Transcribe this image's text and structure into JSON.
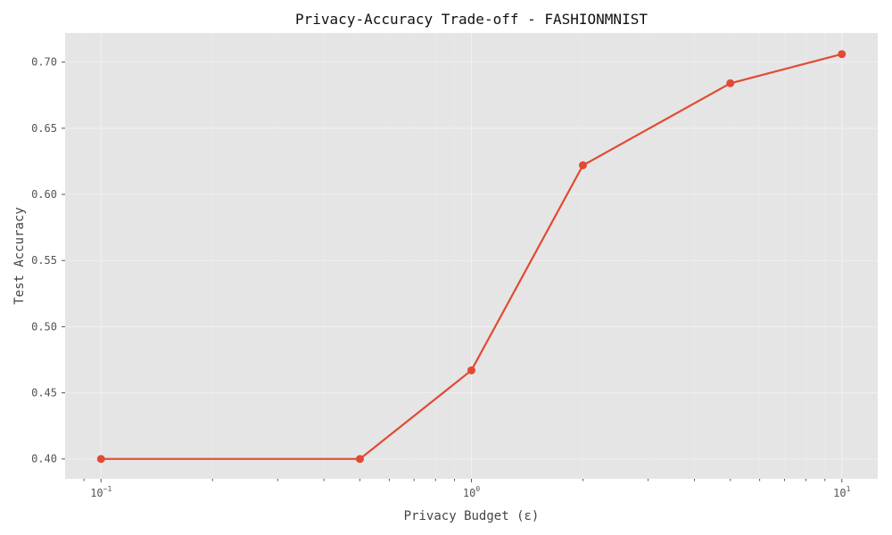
{
  "chart_data": {
    "type": "line",
    "title": "Privacy-Accuracy Trade-off - FASHIONMNIST",
    "xlabel": "Privacy Budget (ε)",
    "ylabel": "Test Accuracy",
    "x_scale": "log",
    "x": [
      0.1,
      0.5,
      1,
      2,
      5,
      10
    ],
    "series": [
      {
        "values": [
          0.4,
          0.4,
          0.467,
          0.622,
          0.684,
          0.706
        ],
        "color": "#e24a33"
      }
    ],
    "xlim": [
      0.08,
      12.5
    ],
    "ylim": [
      0.385,
      0.722
    ],
    "x_major_ticks": [
      {
        "value": 0.1,
        "base": "10",
        "exp": "−1"
      },
      {
        "value": 1,
        "base": "10",
        "exp": "0"
      },
      {
        "value": 10,
        "base": "10",
        "exp": "1"
      }
    ],
    "y_ticks": [
      {
        "value": 0.4,
        "label": "0.40"
      },
      {
        "value": 0.45,
        "label": "0.45"
      },
      {
        "value": 0.5,
        "label": "0.50"
      },
      {
        "value": 0.55,
        "label": "0.55"
      },
      {
        "value": 0.6,
        "label": "0.60"
      },
      {
        "value": 0.65,
        "label": "0.65"
      },
      {
        "value": 0.7,
        "label": "0.70"
      }
    ],
    "grid": true,
    "background_color": "#e5e5e5",
    "grid_color": "#f0f0f0"
  }
}
